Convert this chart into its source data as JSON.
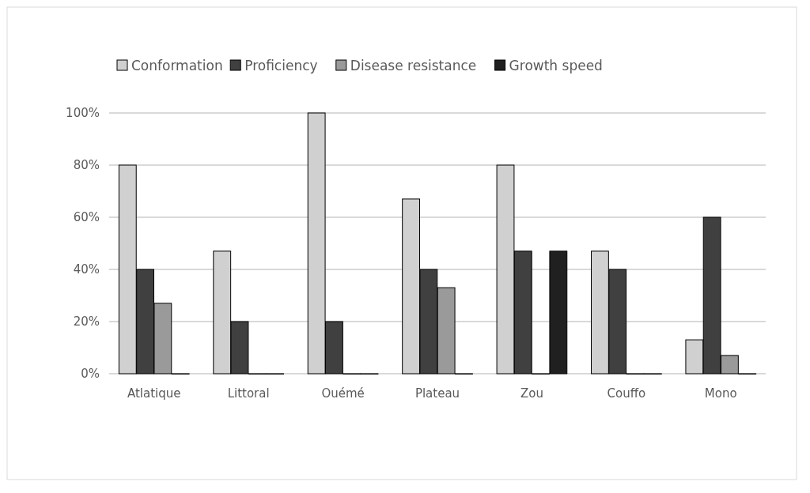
{
  "chart_data": {
    "type": "bar",
    "categories": [
      "Atlatique",
      "Littoral",
      "Ouémé",
      "Plateau",
      "Zou",
      "Couffo",
      "Mono"
    ],
    "series": [
      {
        "name": "Conformation",
        "color": "#d0d0d0",
        "values": [
          80,
          47,
          100,
          67,
          80,
          47,
          13
        ]
      },
      {
        "name": "Proficiency",
        "color": "#404040",
        "values": [
          40,
          20,
          20,
          40,
          47,
          40,
          60
        ]
      },
      {
        "name": "Disease resistance",
        "color": "#9a9a9a",
        "values": [
          27,
          0,
          0,
          33,
          0,
          0,
          7
        ]
      },
      {
        "name": "Growth speed",
        "color": "#202020",
        "values": [
          0,
          0,
          0,
          0,
          47,
          0,
          0
        ]
      }
    ],
    "ylim": [
      0,
      100
    ],
    "yticks": [
      {
        "value": 0,
        "label": "0%"
      },
      {
        "value": 20,
        "label": "20%"
      },
      {
        "value": 40,
        "label": "40%"
      },
      {
        "value": 60,
        "label": "60%"
      },
      {
        "value": 80,
        "label": "80%"
      },
      {
        "value": 100,
        "label": "100%"
      }
    ],
    "grid": "y",
    "legend": "top"
  }
}
